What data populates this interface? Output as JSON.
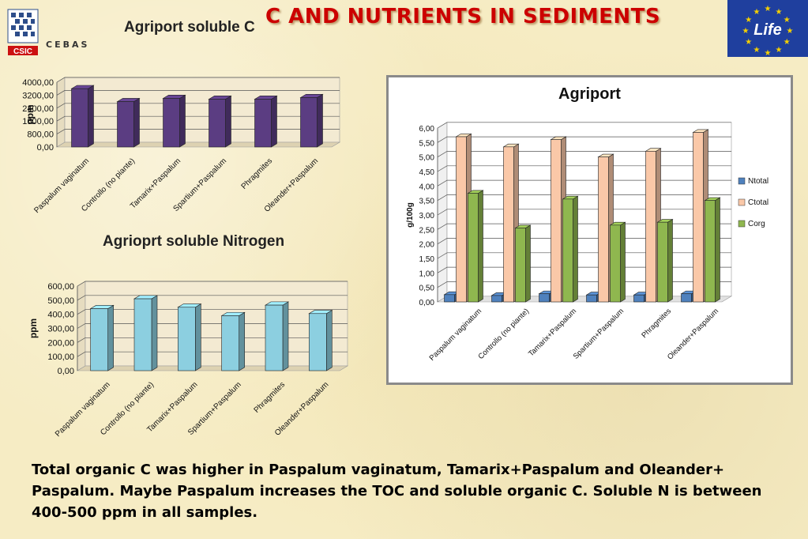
{
  "header": {
    "title": "C AND NUTRIENTS IN SEDIMENTS",
    "logo_left_label": "CSIC",
    "logo_left_sub": "CEBAS",
    "logo_right_label": "Life"
  },
  "caption": "Total organic C was higher in Paspalum vaginatum, Tamarix+Paspalum and Oleander+ Paspalum. Maybe Paspalum increases the TOC and soluble organic C. Soluble N is between 400-500 ppm in all samples.",
  "chart_data": [
    {
      "type": "bar",
      "title": "Agriport soluble C",
      "xlabel": "",
      "ylabel": "ppm",
      "categories": [
        "Paspalum vaginatum",
        "Controllo (no piante)",
        "Tamarix+Paspalum",
        "Spartium+Paspalum",
        "Phragmites",
        "Oleander+Paspalum"
      ],
      "values": [
        3600,
        2800,
        3000,
        2950,
        2950,
        3050
      ],
      "ylim": [
        0,
        4000
      ],
      "yticks": [
        "0,00",
        "800,00",
        "1600,00",
        "2400,00",
        "3200,00",
        "4000,00"
      ],
      "grid": true,
      "color": "#5b3d82"
    },
    {
      "type": "bar",
      "title": "Agrioprt soluble Nitrogen",
      "xlabel": "",
      "ylabel": "ppm",
      "categories": [
        "Paspalum vaginatum",
        "Controllo (no piante)",
        "Tamarix+Paspalum",
        "Spartium+Paspalum",
        "Phragmites",
        "Oleander+Paspalum"
      ],
      "values": [
        440,
        510,
        450,
        390,
        465,
        405
      ],
      "ylim": [
        0,
        600
      ],
      "yticks": [
        "0,00",
        "100,00",
        "200,00",
        "300,00",
        "400,00",
        "500,00",
        "600,00"
      ],
      "grid": true,
      "color": "#8ccfe0"
    },
    {
      "type": "bar",
      "title": "Agriport",
      "xlabel": "",
      "ylabel": "g/100g",
      "categories": [
        "Paspalum vaginatum",
        "Controllo (no piante)",
        "Tamarix+Paspalum",
        "Spartium+Paspalum",
        "Phragmites",
        "Oleander+Paspalum"
      ],
      "series": [
        {
          "name": "Ntotal",
          "values": [
            0.25,
            0.22,
            0.28,
            0.24,
            0.24,
            0.28
          ],
          "color": "#4f81bd"
        },
        {
          "name": "Ctotal",
          "values": [
            5.7,
            5.35,
            5.6,
            5.0,
            5.2,
            5.85
          ],
          "color": "#fac8a8"
        },
        {
          "name": "Corg",
          "values": [
            3.75,
            2.55,
            3.55,
            2.65,
            2.75,
            3.5
          ],
          "color": "#8fb74f"
        }
      ],
      "ylim": [
        0,
        6
      ],
      "yticks": [
        "0,00",
        "0,50",
        "1,00",
        "1,50",
        "2,00",
        "2,50",
        "3,00",
        "3,50",
        "4,00",
        "4,50",
        "5,00",
        "5,50",
        "6,00"
      ],
      "grid": true,
      "legend": "right"
    }
  ]
}
